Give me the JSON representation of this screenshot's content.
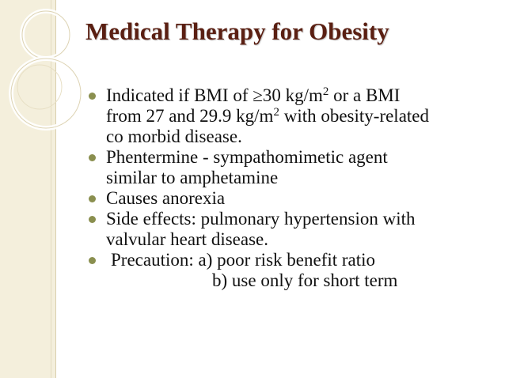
{
  "slide": {
    "title": "Medical Therapy for Obesity",
    "bullets": [
      {
        "lines": [
          {
            "pre": "Indicated if BMI of ≥30 kg/m",
            "sup": "2",
            "post": " or a BMI"
          },
          {
            "pre": "from 27 and 29.9 kg/m",
            "sup": "2",
            "post": " with obesity-related"
          },
          {
            "pre": "co morbid disease.",
            "sup": "",
            "post": ""
          }
        ]
      },
      {
        "lines": [
          "Phentermine - sympathomimetic agent",
          "similar to amphetamine"
        ]
      },
      {
        "lines": [
          "Causes anorexia"
        ]
      },
      {
        "lines": [
          "Side effects: pulmonary hypertension with",
          "valvular heart disease."
        ]
      },
      {
        "lines": [
          "Precaution: a)  poor risk benefit ratio",
          "b) use only for short term"
        ]
      }
    ]
  },
  "colors": {
    "title": "#5a1f12",
    "bullet": "#8a8f4f",
    "band": "#f4efdc",
    "text": "#111111"
  }
}
